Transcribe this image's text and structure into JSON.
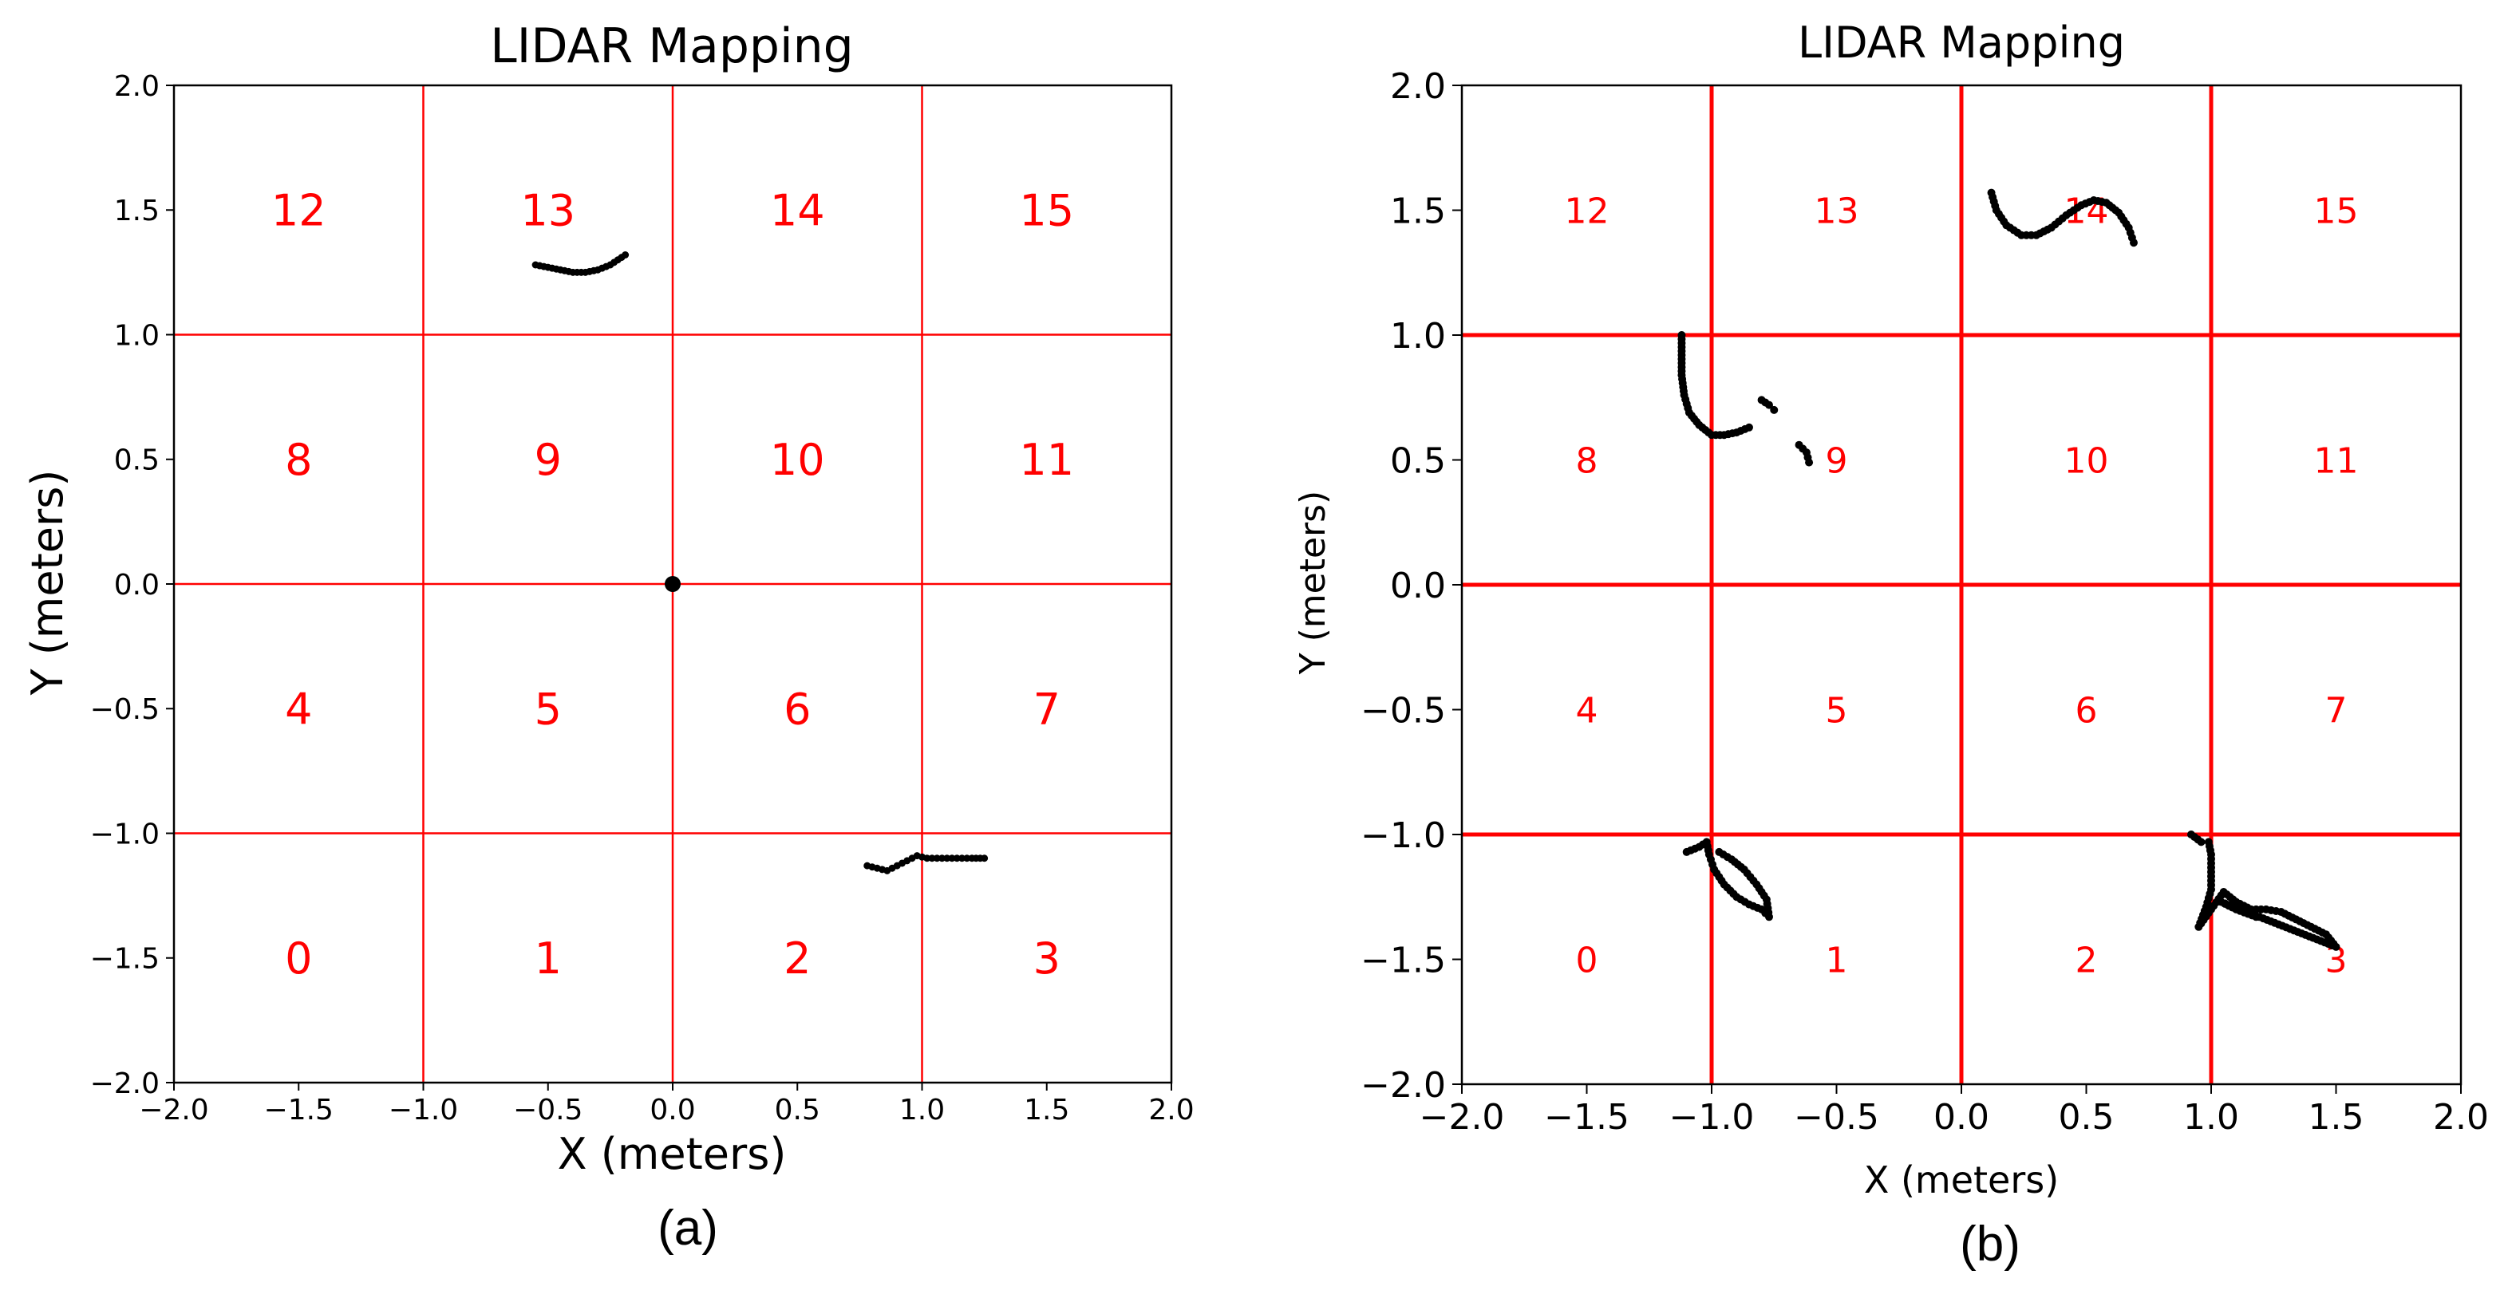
{
  "chart_data": [
    {
      "type": "scatter",
      "panel_caption": "(a)",
      "title": "LIDAR Mapping",
      "xlabel": "X (meters)",
      "ylabel": "Y (meters)",
      "xlim": [
        -2.0,
        2.0
      ],
      "ylim": [
        -2.0,
        2.0
      ],
      "xticks": [
        "−2.0",
        "−1.5",
        "−1.0",
        "−0.5",
        "0.0",
        "0.5",
        "1.0",
        "1.5",
        "2.0"
      ],
      "yticks": [
        "−2.0",
        "−1.5",
        "−1.0",
        "−0.5",
        "0.0",
        "0.5",
        "1.0",
        "1.5",
        "2.0"
      ],
      "grid_lines": [
        -1.0,
        0.0,
        1.0
      ],
      "grid_color": "#ff0000",
      "cell_labels": [
        {
          "text": "0",
          "x": -1.5,
          "y": -1.5
        },
        {
          "text": "1",
          "x": -0.5,
          "y": -1.5
        },
        {
          "text": "2",
          "x": 0.5,
          "y": -1.5
        },
        {
          "text": "3",
          "x": 1.5,
          "y": -1.5
        },
        {
          "text": "4",
          "x": -1.5,
          "y": -0.5
        },
        {
          "text": "5",
          "x": -0.5,
          "y": -0.5
        },
        {
          "text": "6",
          "x": 0.5,
          "y": -0.5
        },
        {
          "text": "7",
          "x": 1.5,
          "y": -0.5
        },
        {
          "text": "8",
          "x": -1.5,
          "y": 0.5
        },
        {
          "text": "9",
          "x": -0.5,
          "y": 0.5
        },
        {
          "text": "10",
          "x": 0.5,
          "y": 0.5
        },
        {
          "text": "11",
          "x": 1.5,
          "y": 0.5
        },
        {
          "text": "12",
          "x": -1.5,
          "y": 1.5
        },
        {
          "text": "13",
          "x": -0.5,
          "y": 1.5
        },
        {
          "text": "14",
          "x": 0.5,
          "y": 1.5
        },
        {
          "text": "15",
          "x": 1.5,
          "y": 1.5
        }
      ],
      "marker": {
        "x": 0.0,
        "y": 0.0
      },
      "series": [
        {
          "points": [
            [
              -0.55,
              1.28
            ],
            [
              -0.5,
              1.27
            ],
            [
              -0.45,
              1.26
            ],
            [
              -0.4,
              1.25
            ],
            [
              -0.35,
              1.25
            ],
            [
              -0.3,
              1.26
            ],
            [
              -0.25,
              1.28
            ],
            [
              -0.22,
              1.3
            ],
            [
              -0.19,
              1.32
            ]
          ]
        },
        {
          "points": [
            [
              0.78,
              -1.13
            ],
            [
              0.82,
              -1.14
            ],
            [
              0.86,
              -1.15
            ],
            [
              0.9,
              -1.13
            ],
            [
              0.94,
              -1.11
            ],
            [
              0.98,
              -1.09
            ],
            [
              1.02,
              -1.1
            ],
            [
              1.06,
              -1.1
            ],
            [
              1.1,
              -1.1
            ],
            [
              1.14,
              -1.1
            ],
            [
              1.2,
              -1.1
            ],
            [
              1.25,
              -1.1
            ]
          ]
        }
      ]
    },
    {
      "type": "scatter",
      "panel_caption": "(b)",
      "title": "LIDAR Mapping",
      "xlabel": "X (meters)",
      "ylabel": "Y (meters)",
      "xlim": [
        -2.0,
        2.0
      ],
      "ylim": [
        -2.0,
        2.0
      ],
      "xticks": [
        "−2.0",
        "−1.5",
        "−1.0",
        "−0.5",
        "0.0",
        "0.5",
        "1.0",
        "1.5",
        "2.0"
      ],
      "yticks": [
        "−2.0",
        "−1.5",
        "−1.0",
        "−0.5",
        "0.0",
        "0.5",
        "1.0",
        "1.5",
        "2.0"
      ],
      "grid_lines": [
        -1.0,
        0.0,
        1.0
      ],
      "grid_color": "#ff0000",
      "cell_labels": [
        {
          "text": "0",
          "x": -1.5,
          "y": -1.5
        },
        {
          "text": "1",
          "x": -0.5,
          "y": -1.5
        },
        {
          "text": "2",
          "x": 0.5,
          "y": -1.5
        },
        {
          "text": "3",
          "x": 1.5,
          "y": -1.5
        },
        {
          "text": "4",
          "x": -1.5,
          "y": -0.5
        },
        {
          "text": "5",
          "x": -0.5,
          "y": -0.5
        },
        {
          "text": "6",
          "x": 0.5,
          "y": -0.5
        },
        {
          "text": "7",
          "x": 1.5,
          "y": -0.5
        },
        {
          "text": "8",
          "x": -1.5,
          "y": 0.5
        },
        {
          "text": "9",
          "x": -0.5,
          "y": 0.5
        },
        {
          "text": "10",
          "x": 0.5,
          "y": 0.5
        },
        {
          "text": "11",
          "x": 1.5,
          "y": 0.5
        },
        {
          "text": "12",
          "x": -1.5,
          "y": 1.5
        },
        {
          "text": "13",
          "x": -0.5,
          "y": 1.5
        },
        {
          "text": "14",
          "x": 0.5,
          "y": 1.5
        },
        {
          "text": "15",
          "x": 1.5,
          "y": 1.5
        }
      ],
      "series": [
        {
          "points": [
            [
              0.12,
              1.57
            ],
            [
              0.14,
              1.5
            ],
            [
              0.18,
              1.44
            ],
            [
              0.24,
              1.4
            ],
            [
              0.3,
              1.4
            ],
            [
              0.36,
              1.43
            ],
            [
              0.42,
              1.48
            ],
            [
              0.48,
              1.52
            ],
            [
              0.53,
              1.54
            ],
            [
              0.58,
              1.53
            ],
            [
              0.63,
              1.49
            ],
            [
              0.67,
              1.43
            ],
            [
              0.69,
              1.37
            ]
          ]
        },
        {
          "points": [
            [
              -1.12,
              1.0
            ],
            [
              -1.12,
              0.92
            ],
            [
              -1.12,
              0.84
            ],
            [
              -1.11,
              0.76
            ],
            [
              -1.09,
              0.69
            ],
            [
              -1.05,
              0.64
            ],
            [
              -1.0,
              0.6
            ],
            [
              -0.95,
              0.6
            ],
            [
              -0.9,
              0.61
            ],
            [
              -0.85,
              0.63
            ]
          ]
        },
        {
          "points": [
            [
              -0.8,
              0.74
            ],
            [
              -0.77,
              0.72
            ],
            [
              -0.75,
              0.7
            ]
          ]
        },
        {
          "points": [
            [
              -0.65,
              0.56
            ],
            [
              -0.62,
              0.53
            ],
            [
              -0.61,
              0.49
            ]
          ]
        },
        {
          "points": [
            [
              -1.1,
              -1.07
            ],
            [
              -1.05,
              -1.05
            ],
            [
              -1.02,
              -1.03
            ],
            [
              -1.01,
              -1.08
            ],
            [
              -0.99,
              -1.14
            ],
            [
              -0.95,
              -1.2
            ],
            [
              -0.9,
              -1.25
            ],
            [
              -0.85,
              -1.28
            ],
            [
              -0.8,
              -1.3
            ],
            [
              -0.77,
              -1.33
            ],
            [
              -0.78,
              -1.26
            ],
            [
              -0.82,
              -1.2
            ],
            [
              -0.87,
              -1.14
            ],
            [
              -0.92,
              -1.1
            ],
            [
              -0.97,
              -1.07
            ]
          ]
        },
        {
          "points": [
            [
              0.92,
              -1.0
            ],
            [
              0.96,
              -1.03
            ],
            [
              0.99,
              -1.03
            ],
            [
              1.0,
              -1.08
            ],
            [
              1.0,
              -1.15
            ],
            [
              1.0,
              -1.22
            ],
            [
              0.98,
              -1.29
            ],
            [
              0.95,
              -1.37
            ],
            [
              1.05,
              -1.23
            ],
            [
              1.1,
              -1.27
            ],
            [
              1.16,
              -1.3
            ],
            [
              1.22,
              -1.3
            ],
            [
              1.28,
              -1.31
            ],
            [
              1.34,
              -1.34
            ],
            [
              1.4,
              -1.37
            ],
            [
              1.46,
              -1.4
            ],
            [
              1.5,
              -1.45
            ],
            [
              1.04,
              -1.27
            ],
            [
              1.1,
              -1.3
            ],
            [
              1.18,
              -1.33
            ]
          ]
        }
      ]
    }
  ]
}
